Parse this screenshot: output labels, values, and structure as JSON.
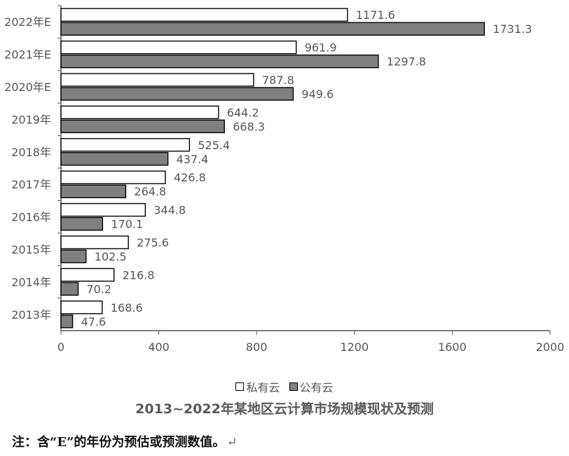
{
  "chart_data": {
    "type": "bar",
    "orientation": "horizontal",
    "title": "2013~2022年某地区云计算市场规模现状及预测",
    "categories": [
      "2022年E",
      "2021年E",
      "2020年E",
      "2019年",
      "2018年",
      "2017年",
      "2016年",
      "2015年",
      "2014年",
      "2013年"
    ],
    "series": [
      {
        "name": "私有云",
        "color": "#ffffff",
        "values": [
          1171.6,
          961.9,
          787.8,
          644.2,
          525.4,
          426.8,
          344.8,
          275.6,
          216.8,
          168.6
        ],
        "labels": [
          "1171.6",
          "961.9",
          "787.8",
          "644.2",
          "525.4",
          "426.8",
          "344.8",
          "275.6",
          "216.8",
          "168.6"
        ]
      },
      {
        "name": "公有云",
        "color": "#808080",
        "values": [
          1731.3,
          1297.8,
          949.6,
          668.3,
          437.4,
          264.8,
          170.1,
          102.5,
          70.2,
          47.6
        ],
        "labels": [
          "1731.3",
          "1297.8",
          "949.6",
          "668.3",
          "437.4",
          "264.8",
          "170.1",
          "102.5",
          "70.2",
          "47.6"
        ]
      }
    ],
    "xlim": [
      0,
      2000
    ],
    "xticks": [
      "0",
      "400",
      "800",
      "1200",
      "1600",
      "2000"
    ],
    "grid": false,
    "legend_position": "bottom"
  },
  "legend": {
    "private_label": "私有云",
    "public_label": "公有云"
  },
  "footnote": {
    "text": "注：含“E”的年份为预估或预测数值。",
    "return_symbol": "↵"
  }
}
